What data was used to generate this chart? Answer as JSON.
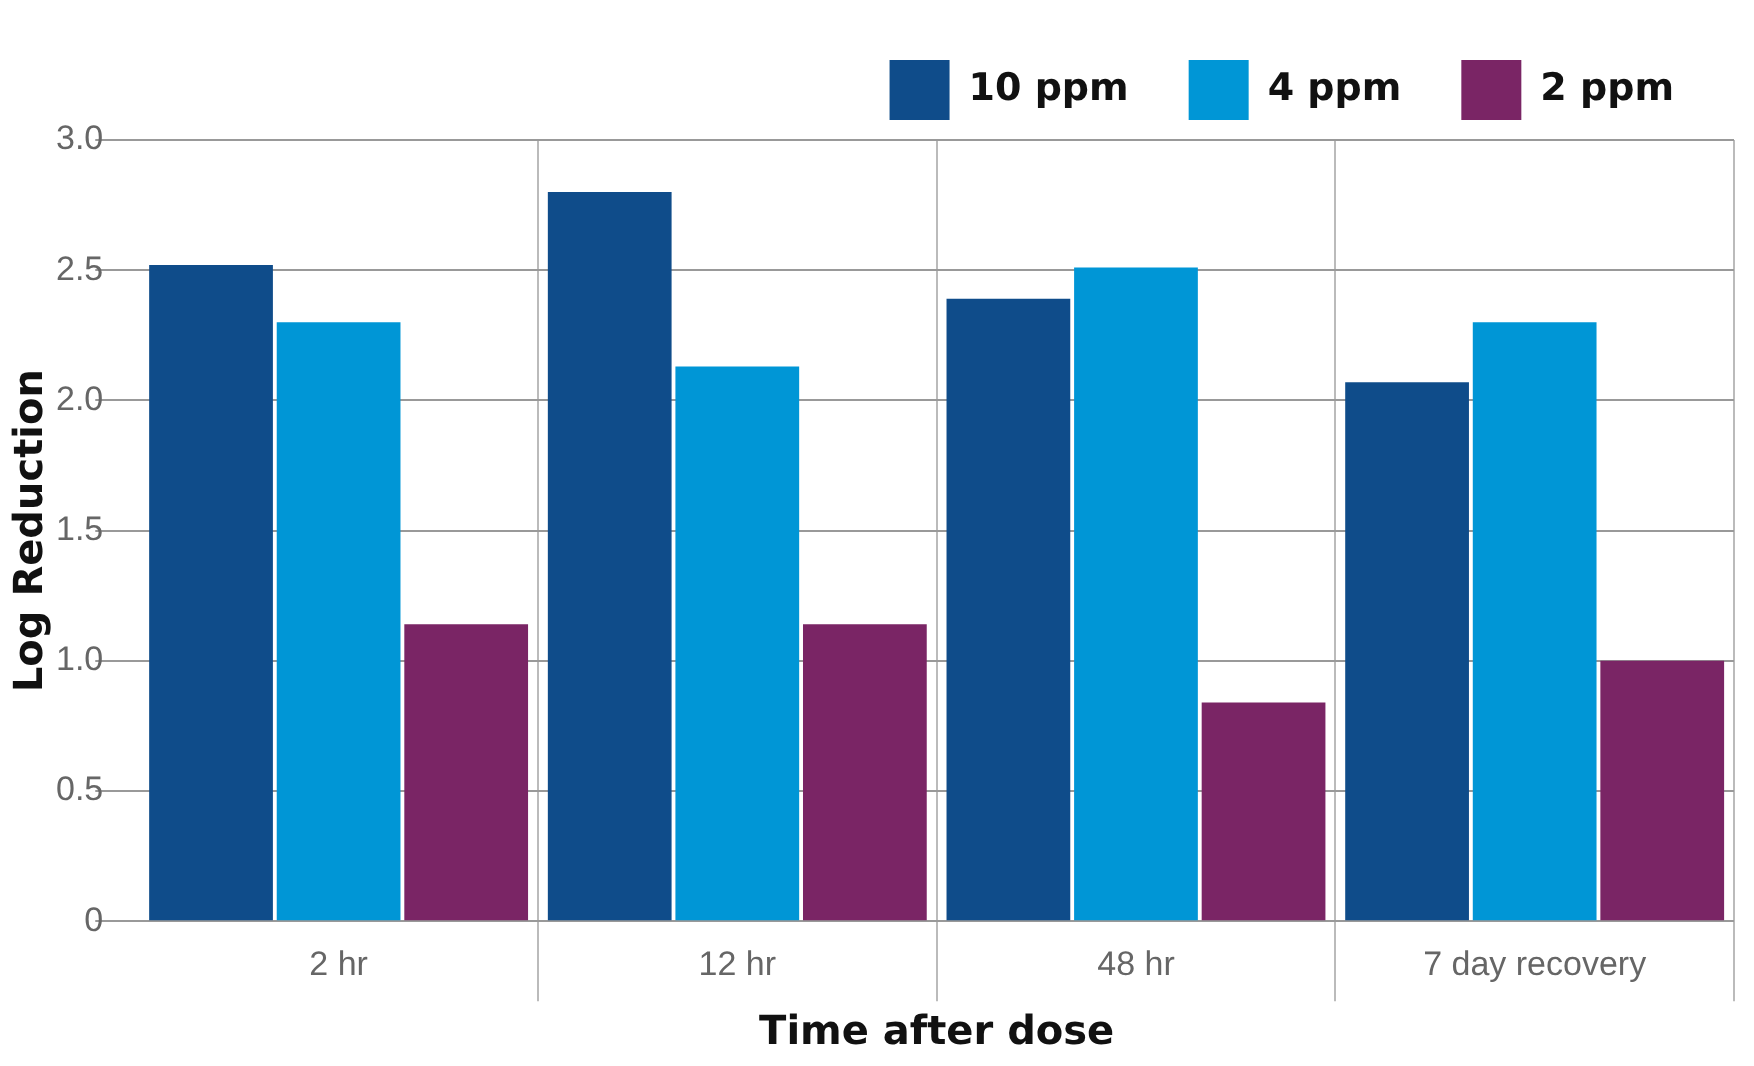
{
  "chart_data": {
    "type": "bar",
    "xlabel": "Time after dose",
    "ylabel": "Log Reduction",
    "categories": [
      "2 hr",
      "12 hr",
      "48 hr",
      "7 day recovery"
    ],
    "series": [
      {
        "name": "10 ppm",
        "color": "#0f4c8a",
        "values": [
          2.52,
          2.8,
          2.39,
          2.07
        ]
      },
      {
        "name": "4 ppm",
        "color": "#0096d6",
        "values": [
          2.3,
          2.13,
          2.51,
          2.3
        ]
      },
      {
        "name": "2 ppm",
        "color": "#7a2565",
        "values": [
          1.14,
          1.14,
          0.84,
          1.0
        ]
      }
    ],
    "ylim": [
      0,
      3.0
    ],
    "yticks": [
      0,
      {
        "value": 0.5,
        "label": "0.5"
      },
      {
        "value": 1,
        "label": "1.0"
      },
      {
        "value": 1.5,
        "label": "1.5"
      },
      {
        "value": 2,
        "label": "2.0"
      },
      {
        "value": 2.5,
        "label": "2.5"
      },
      {
        "value": 3,
        "label": "3.0"
      }
    ],
    "grid": true,
    "legend": "top right"
  }
}
